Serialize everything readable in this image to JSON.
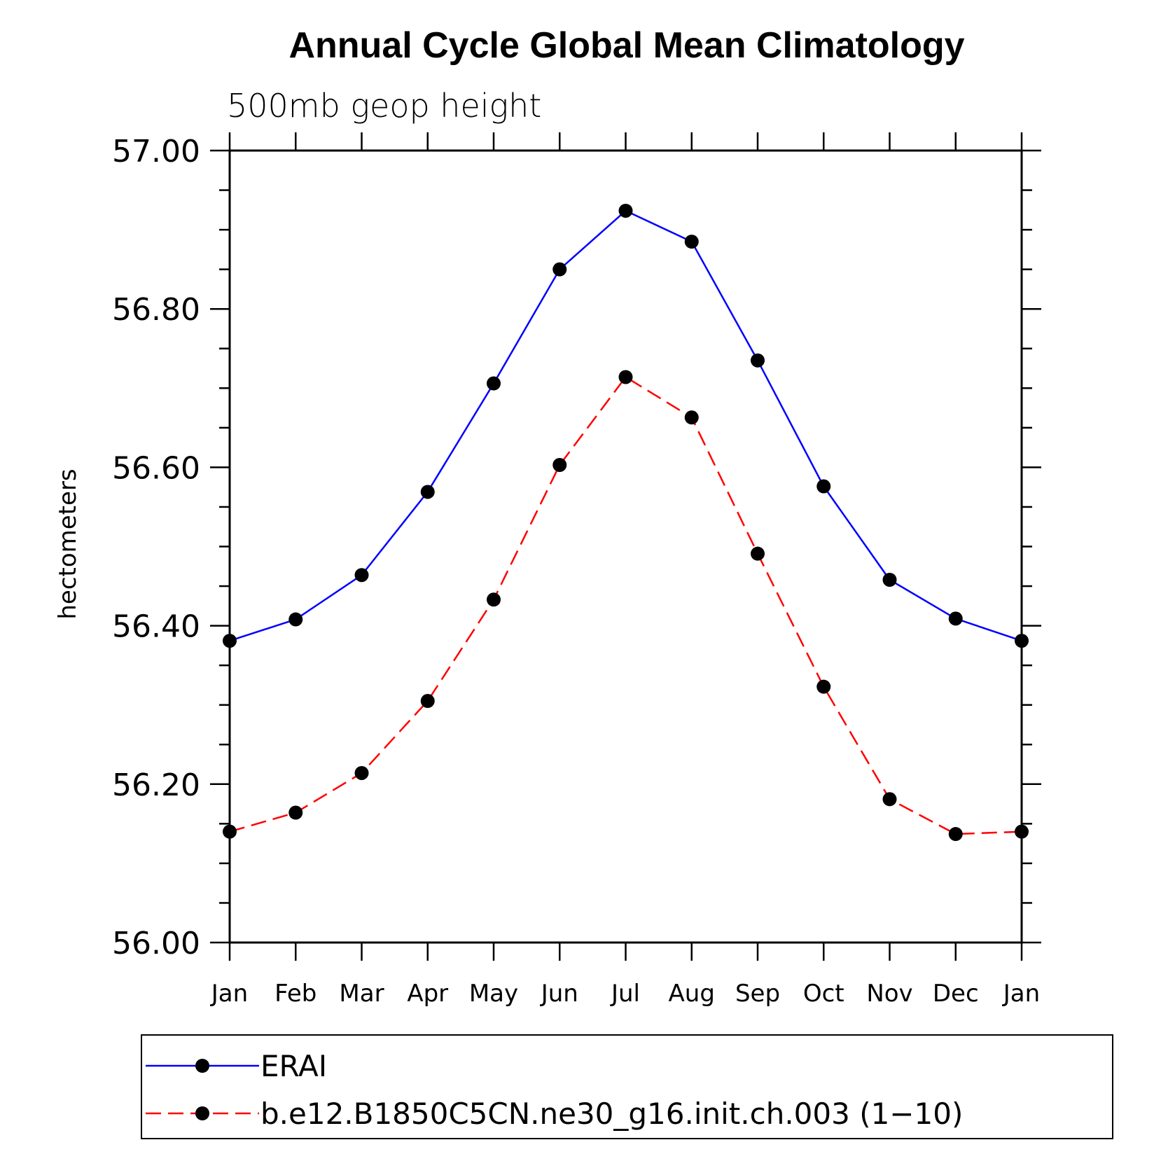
{
  "chart_data": {
    "type": "line",
    "title": "Annual Cycle Global Mean Climatology",
    "subtitle": "500mb geop height",
    "ylabel": "hectometers",
    "xlabel": "",
    "categories": [
      "Jan",
      "Feb",
      "Mar",
      "Apr",
      "May",
      "Jun",
      "Jul",
      "Aug",
      "Sep",
      "Oct",
      "Nov",
      "Dec",
      "Jan"
    ],
    "ylim": [
      56.0,
      57.0
    ],
    "yticks": [
      "56.00",
      "56.20",
      "56.40",
      "56.60",
      "56.80",
      "57.00"
    ],
    "series": [
      {
        "name": "ERAI",
        "color": "#0000ff",
        "dash": "solid",
        "marker": "filled-circle",
        "values": [
          56.381,
          56.408,
          56.464,
          56.569,
          56.706,
          56.85,
          56.924,
          56.885,
          56.735,
          56.576,
          56.458,
          56.409,
          56.381
        ]
      },
      {
        "name": "b.e12.B1850C5CN.ne30_g16.init.ch.003 (1−10)",
        "color": "#ff0000",
        "dash": "dashed",
        "marker": "filled-circle",
        "values": [
          56.14,
          56.164,
          56.214,
          56.305,
          56.433,
          56.603,
          56.714,
          56.663,
          56.491,
          56.323,
          56.181,
          56.137,
          56.14
        ]
      }
    ],
    "legend": "bottom",
    "grid": false
  }
}
